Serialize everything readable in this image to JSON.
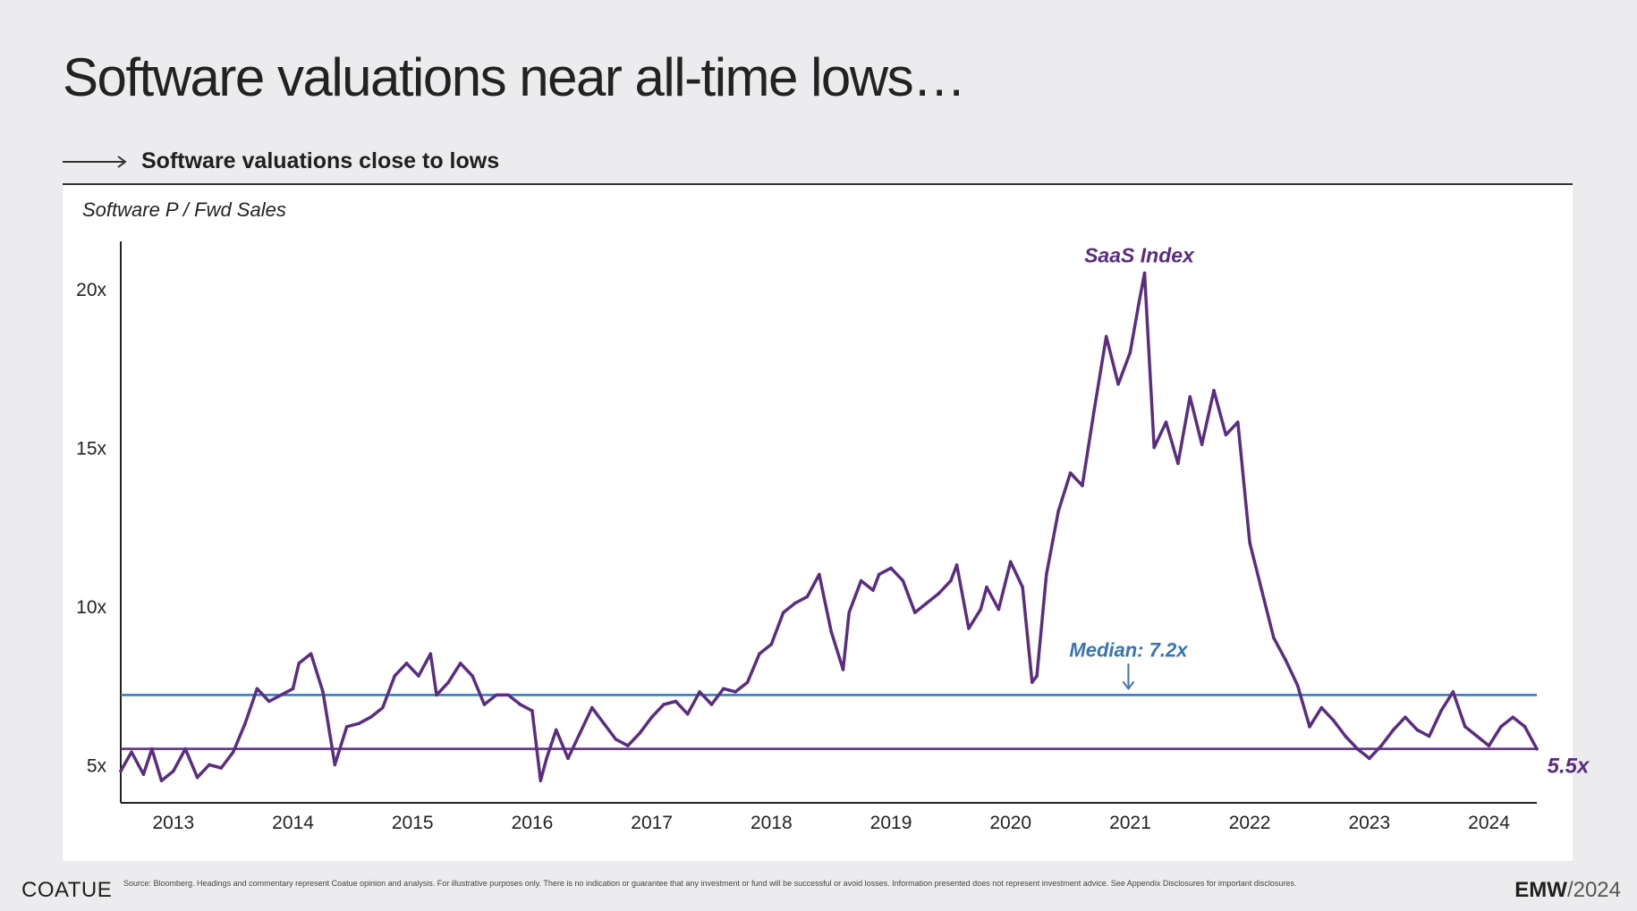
{
  "page": {
    "title": "Software valuations near all-time lows…",
    "subhead": "Software valuations close to lows",
    "panel_label": "Software P / Fwd Sales"
  },
  "footer": {
    "logo": "COATUE",
    "note": "Source: Bloomberg. Headings and commentary represent Coatue opinion and analysis. For illustrative purposes only. There is no indication or guarantee that any investment or fund will be successful or avoid losses. Information presented does not represent investment advice. See Appendix Disclosures for important disclosures.",
    "event_bold": "EMW",
    "event_light": "/2024"
  },
  "chart_data": {
    "type": "line",
    "ylabel": "Software P / Fwd Sales",
    "ylim": [
      3.8,
      21.5
    ],
    "xlim": [
      2012.56,
      2024.4
    ],
    "yticks": [
      5,
      10,
      15,
      20
    ],
    "ytick_labels": [
      "5x",
      "10x",
      "15x",
      "20x"
    ],
    "xticks": [
      2013,
      2014,
      2015,
      2016,
      2017,
      2018,
      2019,
      2020,
      2021,
      2022,
      2023,
      2024
    ],
    "xtick_labels": [
      "2013",
      "2014",
      "2015",
      "2016",
      "2017",
      "2018",
      "2019",
      "2020",
      "2021",
      "2022",
      "2023",
      "2024"
    ],
    "grid": false,
    "series": [
      {
        "name": "SaaS Index",
        "color": "#5b2d82",
        "x": [
          2012.56,
          2012.65,
          2012.75,
          2012.82,
          2012.9,
          2013.0,
          2013.1,
          2013.2,
          2013.3,
          2013.4,
          2013.5,
          2013.6,
          2013.7,
          2013.8,
          2013.9,
          2014.0,
          2014.05,
          2014.15,
          2014.25,
          2014.35,
          2014.45,
          2014.55,
          2014.65,
          2014.75,
          2014.85,
          2014.95,
          2015.05,
          2015.15,
          2015.2,
          2015.3,
          2015.4,
          2015.5,
          2015.6,
          2015.7,
          2015.8,
          2015.9,
          2016.0,
          2016.07,
          2016.12,
          2016.2,
          2016.3,
          2016.4,
          2016.5,
          2016.6,
          2016.7,
          2016.8,
          2016.9,
          2017.0,
          2017.1,
          2017.2,
          2017.3,
          2017.4,
          2017.5,
          2017.6,
          2017.7,
          2017.8,
          2017.9,
          2018.0,
          2018.1,
          2018.2,
          2018.3,
          2018.4,
          2018.5,
          2018.6,
          2018.65,
          2018.75,
          2018.85,
          2018.9,
          2019.0,
          2019.1,
          2019.2,
          2019.3,
          2019.4,
          2019.5,
          2019.55,
          2019.65,
          2019.75,
          2019.8,
          2019.9,
          2020.0,
          2020.1,
          2020.18,
          2020.22,
          2020.3,
          2020.4,
          2020.5,
          2020.6,
          2020.7,
          2020.8,
          2020.9,
          2021.0,
          2021.07,
          2021.12,
          2021.2,
          2021.3,
          2021.4,
          2021.5,
          2021.6,
          2021.7,
          2021.8,
          2021.9,
          2022.0,
          2022.1,
          2022.2,
          2022.3,
          2022.4,
          2022.5,
          2022.6,
          2022.7,
          2022.8,
          2022.9,
          2023.0,
          2023.1,
          2023.2,
          2023.3,
          2023.4,
          2023.5,
          2023.6,
          2023.7,
          2023.8,
          2023.9,
          2024.0,
          2024.1,
          2024.2,
          2024.3,
          2024.4
        ],
        "y": [
          4.8,
          5.4,
          4.7,
          5.5,
          4.5,
          4.8,
          5.5,
          4.6,
          5.0,
          4.9,
          5.4,
          6.3,
          7.4,
          7.0,
          7.2,
          7.4,
          8.2,
          8.5,
          7.3,
          5.0,
          6.2,
          6.3,
          6.5,
          6.8,
          7.8,
          8.2,
          7.8,
          8.5,
          7.2,
          7.6,
          8.2,
          7.8,
          6.9,
          7.2,
          7.2,
          6.9,
          6.7,
          4.5,
          5.2,
          6.1,
          5.2,
          6.0,
          6.8,
          6.3,
          5.8,
          5.6,
          6.0,
          6.5,
          6.9,
          7.0,
          6.6,
          7.3,
          6.9,
          7.4,
          7.3,
          7.6,
          8.5,
          8.8,
          9.8,
          10.1,
          10.3,
          11.0,
          9.2,
          8.0,
          9.8,
          10.8,
          10.5,
          11.0,
          11.2,
          10.8,
          9.8,
          10.1,
          10.4,
          10.8,
          11.3,
          9.3,
          9.9,
          10.6,
          9.9,
          11.4,
          10.6,
          7.6,
          7.8,
          11.0,
          13.0,
          14.2,
          13.8,
          16.2,
          18.5,
          17.0,
          18.0,
          19.5,
          20.5,
          15.0,
          15.8,
          14.5,
          16.6,
          15.1,
          16.8,
          15.4,
          15.8,
          12.0,
          10.5,
          9.0,
          8.3,
          7.5,
          6.2,
          6.8,
          6.4,
          5.9,
          5.5,
          5.2,
          5.6,
          6.1,
          6.5,
          6.1,
          5.9,
          6.7,
          7.3,
          6.2,
          5.9,
          5.6,
          6.2,
          6.5,
          6.2,
          5.5
        ]
      },
      {
        "name": "Median: 7.2x",
        "color": "#3a74b8",
        "value": 7.2
      }
    ],
    "annotations": {
      "series_label": "SaaS Index",
      "median_label": "Median: 7.2x",
      "current_value": 5.5,
      "current_label": "5.5x"
    }
  }
}
